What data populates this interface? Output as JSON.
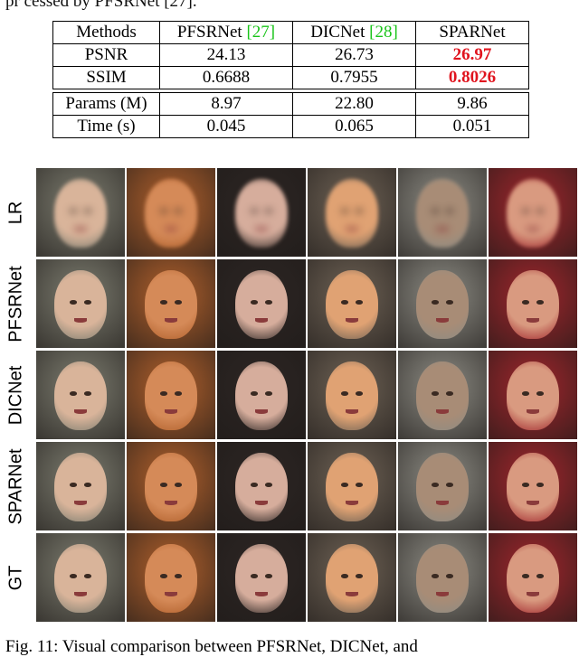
{
  "header_fragment": "pr cessed by PFSRNet [27].",
  "table": {
    "header": {
      "methods": "Methods",
      "pfsrnet": "PFSRNet",
      "pfsrnet_cite": "[27]",
      "dicnet": "DICNet",
      "dicnet_cite": "[28]",
      "sparnet": "SPARNet"
    },
    "rows": [
      {
        "label": "PSNR",
        "pfsrnet": "24.13",
        "dicnet": "26.73",
        "sparnet": "26.97",
        "best": "sparnet"
      },
      {
        "label": "SSIM",
        "pfsrnet": "0.6688",
        "dicnet": "0.7955",
        "sparnet": "0.8026",
        "best": "sparnet"
      },
      {
        "label": "Params (M)",
        "pfsrnet": "8.97",
        "dicnet": "22.80",
        "sparnet": "9.86"
      },
      {
        "label": "Time (s)",
        "pfsrnet": "0.045",
        "dicnet": "0.065",
        "sparnet": "0.051"
      }
    ]
  },
  "figure": {
    "row_labels": [
      "LR",
      "PFSRNet",
      "DICNet",
      "SPARNet",
      "GT"
    ],
    "colors": {
      "bg": [
        "#7d7d70",
        "#b0602c",
        "#2d2624",
        "#6e6255",
        "#8d8c84",
        "#a0262c"
      ],
      "skin": [
        "#d9b49a",
        "#d58a58",
        "#d6ad9c",
        "#e0a273",
        "#a88c76",
        "#d99a80"
      ]
    }
  },
  "caption": "Fig. 11: Visual comparison between PFSRNet, DICNet, and"
}
